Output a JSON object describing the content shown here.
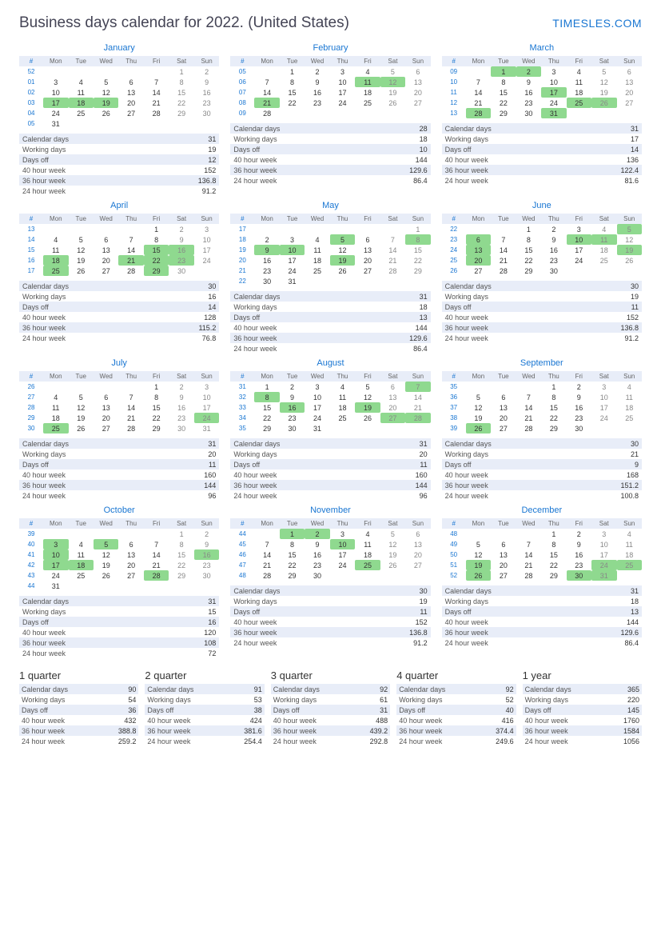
{
  "title": "Business days calendar for 2022. (United States)",
  "brand": "TIMESLES.COM",
  "weekdays": [
    "#",
    "Mon",
    "Tue",
    "Wed",
    "Thu",
    "Fri",
    "Sat",
    "Sun"
  ],
  "stat_labels": [
    "Calendar days",
    "Working days",
    "Days off",
    "40 hour week",
    "36 hour week",
    "24 hour week"
  ],
  "months": [
    {
      "name": "January",
      "weeks": [
        {
          "w": "52",
          "d": [
            "",
            "",
            "",
            "",
            "",
            "1",
            "2"
          ],
          "hl": []
        },
        {
          "w": "01",
          "d": [
            "3",
            "4",
            "5",
            "6",
            "7",
            "8",
            "9"
          ],
          "hl": []
        },
        {
          "w": "02",
          "d": [
            "10",
            "11",
            "12",
            "13",
            "14",
            "15",
            "16"
          ],
          "hl": []
        },
        {
          "w": "03",
          "d": [
            "17",
            "18",
            "19",
            "20",
            "21",
            "22",
            "23"
          ],
          "hl": [
            0,
            1,
            2
          ]
        },
        {
          "w": "04",
          "d": [
            "24",
            "25",
            "26",
            "27",
            "28",
            "29",
            "30"
          ],
          "hl": []
        },
        {
          "w": "05",
          "d": [
            "31",
            "",
            "",
            "",
            "",
            "",
            ""
          ],
          "hl": []
        }
      ],
      "stats": [
        "31",
        "19",
        "12",
        "152",
        "136.8",
        "91.2"
      ]
    },
    {
      "name": "February",
      "weeks": [
        {
          "w": "05",
          "d": [
            "",
            "1",
            "2",
            "3",
            "4",
            "5",
            "6"
          ],
          "hl": []
        },
        {
          "w": "06",
          "d": [
            "7",
            "8",
            "9",
            "10",
            "11",
            "12",
            "13"
          ],
          "hl": [
            4,
            5
          ]
        },
        {
          "w": "07",
          "d": [
            "14",
            "15",
            "16",
            "17",
            "18",
            "19",
            "20"
          ],
          "hl": []
        },
        {
          "w": "08",
          "d": [
            "21",
            "22",
            "23",
            "24",
            "25",
            "26",
            "27"
          ],
          "hl": [
            0
          ]
        },
        {
          "w": "09",
          "d": [
            "28",
            "",
            "",
            "",
            "",
            "",
            ""
          ],
          "hl": []
        }
      ],
      "stats": [
        "28",
        "18",
        "10",
        "144",
        "129.6",
        "86.4"
      ]
    },
    {
      "name": "March",
      "weeks": [
        {
          "w": "09",
          "d": [
            "",
            "1",
            "2",
            "3",
            "4",
            "5",
            "6"
          ],
          "hl": [
            1,
            2
          ]
        },
        {
          "w": "10",
          "d": [
            "7",
            "8",
            "9",
            "10",
            "11",
            "12",
            "13"
          ],
          "hl": []
        },
        {
          "w": "11",
          "d": [
            "14",
            "15",
            "16",
            "17",
            "18",
            "19",
            "20"
          ],
          "hl": [
            3
          ]
        },
        {
          "w": "12",
          "d": [
            "21",
            "22",
            "23",
            "24",
            "25",
            "26",
            "27"
          ],
          "hl": [
            4,
            5
          ]
        },
        {
          "w": "13",
          "d": [
            "28",
            "29",
            "30",
            "31",
            "",
            "",
            ""
          ],
          "hl": [
            0,
            3
          ]
        }
      ],
      "stats": [
        "31",
        "17",
        "14",
        "136",
        "122.4",
        "81.6"
      ]
    },
    {
      "name": "April",
      "weeks": [
        {
          "w": "13",
          "d": [
            "",
            "",
            "",
            "",
            "1",
            "2",
            "3"
          ],
          "hl": []
        },
        {
          "w": "14",
          "d": [
            "4",
            "5",
            "6",
            "7",
            "8",
            "9",
            "10"
          ],
          "hl": []
        },
        {
          "w": "15",
          "d": [
            "11",
            "12",
            "13",
            "14",
            "15",
            "16",
            "17"
          ],
          "hl": [
            4,
            5
          ]
        },
        {
          "w": "16",
          "d": [
            "18",
            "19",
            "20",
            "21",
            "22",
            "23",
            "24"
          ],
          "hl": [
            0,
            3,
            4,
            5
          ]
        },
        {
          "w": "17",
          "d": [
            "25",
            "26",
            "27",
            "28",
            "29",
            "30",
            ""
          ],
          "hl": [
            0,
            4
          ]
        }
      ],
      "stats": [
        "30",
        "16",
        "14",
        "128",
        "115.2",
        "76.8"
      ]
    },
    {
      "name": "May",
      "weeks": [
        {
          "w": "17",
          "d": [
            "",
            "",
            "",
            "",
            "",
            "",
            "1"
          ],
          "hl": []
        },
        {
          "w": "18",
          "d": [
            "2",
            "3",
            "4",
            "5",
            "6",
            "7",
            "8"
          ],
          "hl": [
            3,
            6
          ]
        },
        {
          "w": "19",
          "d": [
            "9",
            "10",
            "11",
            "12",
            "13",
            "14",
            "15"
          ],
          "hl": [
            0,
            1
          ]
        },
        {
          "w": "20",
          "d": [
            "16",
            "17",
            "18",
            "19",
            "20",
            "21",
            "22"
          ],
          "hl": [
            3
          ]
        },
        {
          "w": "21",
          "d": [
            "23",
            "24",
            "25",
            "26",
            "27",
            "28",
            "29"
          ],
          "hl": []
        },
        {
          "w": "22",
          "d": [
            "30",
            "31",
            "",
            "",
            "",
            "",
            ""
          ],
          "hl": []
        }
      ],
      "stats": [
        "31",
        "18",
        "13",
        "144",
        "129.6",
        "86.4"
      ]
    },
    {
      "name": "June",
      "weeks": [
        {
          "w": "22",
          "d": [
            "",
            "",
            "1",
            "2",
            "3",
            "4",
            "5"
          ],
          "hl": [
            6
          ]
        },
        {
          "w": "23",
          "d": [
            "6",
            "7",
            "8",
            "9",
            "10",
            "11",
            "12"
          ],
          "hl": [
            0,
            4,
            5
          ]
        },
        {
          "w": "24",
          "d": [
            "13",
            "14",
            "15",
            "16",
            "17",
            "18",
            "19"
          ],
          "hl": [
            0,
            6
          ]
        },
        {
          "w": "25",
          "d": [
            "20",
            "21",
            "22",
            "23",
            "24",
            "25",
            "26"
          ],
          "hl": [
            0
          ]
        },
        {
          "w": "26",
          "d": [
            "27",
            "28",
            "29",
            "30",
            "",
            "",
            ""
          ],
          "hl": []
        }
      ],
      "stats": [
        "30",
        "19",
        "11",
        "152",
        "136.8",
        "91.2"
      ]
    },
    {
      "name": "July",
      "weeks": [
        {
          "w": "26",
          "d": [
            "",
            "",
            "",
            "",
            "1",
            "2",
            "3"
          ],
          "hl": []
        },
        {
          "w": "27",
          "d": [
            "4",
            "5",
            "6",
            "7",
            "8",
            "9",
            "10"
          ],
          "hl": []
        },
        {
          "w": "28",
          "d": [
            "11",
            "12",
            "13",
            "14",
            "15",
            "16",
            "17"
          ],
          "hl": []
        },
        {
          "w": "29",
          "d": [
            "18",
            "19",
            "20",
            "21",
            "22",
            "23",
            "24"
          ],
          "hl": [
            6
          ]
        },
        {
          "w": "30",
          "d": [
            "25",
            "26",
            "27",
            "28",
            "29",
            "30",
            "31"
          ],
          "hl": [
            0
          ]
        }
      ],
      "stats": [
        "31",
        "20",
        "11",
        "160",
        "144",
        "96"
      ]
    },
    {
      "name": "August",
      "weeks": [
        {
          "w": "31",
          "d": [
            "1",
            "2",
            "3",
            "4",
            "5",
            "6",
            "7"
          ],
          "hl": [
            6
          ]
        },
        {
          "w": "32",
          "d": [
            "8",
            "9",
            "10",
            "11",
            "12",
            "13",
            "14"
          ],
          "hl": [
            0
          ]
        },
        {
          "w": "33",
          "d": [
            "15",
            "16",
            "17",
            "18",
            "19",
            "20",
            "21"
          ],
          "hl": [
            1,
            4
          ]
        },
        {
          "w": "34",
          "d": [
            "22",
            "23",
            "24",
            "25",
            "26",
            "27",
            "28"
          ],
          "hl": [
            5,
            6
          ]
        },
        {
          "w": "35",
          "d": [
            "29",
            "30",
            "31",
            "",
            "",
            "",
            ""
          ],
          "hl": []
        }
      ],
      "stats": [
        "31",
        "20",
        "11",
        "160",
        "144",
        "96"
      ]
    },
    {
      "name": "September",
      "weeks": [
        {
          "w": "35",
          "d": [
            "",
            "",
            "",
            "1",
            "2",
            "3",
            "4"
          ],
          "hl": []
        },
        {
          "w": "36",
          "d": [
            "5",
            "6",
            "7",
            "8",
            "9",
            "10",
            "11"
          ],
          "hl": []
        },
        {
          "w": "37",
          "d": [
            "12",
            "13",
            "14",
            "15",
            "16",
            "17",
            "18"
          ],
          "hl": []
        },
        {
          "w": "38",
          "d": [
            "19",
            "20",
            "21",
            "22",
            "23",
            "24",
            "25"
          ],
          "hl": []
        },
        {
          "w": "39",
          "d": [
            "26",
            "27",
            "28",
            "29",
            "30",
            "",
            ""
          ],
          "hl": [
            0
          ]
        }
      ],
      "stats": [
        "30",
        "21",
        "9",
        "168",
        "151.2",
        "100.8"
      ]
    },
    {
      "name": "October",
      "weeks": [
        {
          "w": "39",
          "d": [
            "",
            "",
            "",
            "",
            "",
            "1",
            "2"
          ],
          "hl": []
        },
        {
          "w": "40",
          "d": [
            "3",
            "4",
            "5",
            "6",
            "7",
            "8",
            "9"
          ],
          "hl": [
            0,
            2
          ]
        },
        {
          "w": "41",
          "d": [
            "10",
            "11",
            "12",
            "13",
            "14",
            "15",
            "16"
          ],
          "hl": [
            0,
            6
          ]
        },
        {
          "w": "42",
          "d": [
            "17",
            "18",
            "19",
            "20",
            "21",
            "22",
            "23"
          ],
          "hl": [
            0,
            1
          ]
        },
        {
          "w": "43",
          "d": [
            "24",
            "25",
            "26",
            "27",
            "28",
            "29",
            "30"
          ],
          "hl": [
            4
          ]
        },
        {
          "w": "44",
          "d": [
            "31",
            "",
            "",
            "",
            "",
            "",
            ""
          ],
          "hl": []
        }
      ],
      "stats": [
        "31",
        "15",
        "16",
        "120",
        "108",
        "72"
      ]
    },
    {
      "name": "November",
      "weeks": [
        {
          "w": "44",
          "d": [
            "",
            "1",
            "2",
            "3",
            "4",
            "5",
            "6"
          ],
          "hl": [
            1,
            2
          ]
        },
        {
          "w": "45",
          "d": [
            "7",
            "8",
            "9",
            "10",
            "11",
            "12",
            "13"
          ],
          "hl": [
            3
          ]
        },
        {
          "w": "46",
          "d": [
            "14",
            "15",
            "16",
            "17",
            "18",
            "19",
            "20"
          ],
          "hl": []
        },
        {
          "w": "47",
          "d": [
            "21",
            "22",
            "23",
            "24",
            "25",
            "26",
            "27"
          ],
          "hl": [
            4
          ]
        },
        {
          "w": "48",
          "d": [
            "28",
            "29",
            "30",
            "",
            "",
            "",
            ""
          ],
          "hl": []
        }
      ],
      "stats": [
        "30",
        "19",
        "11",
        "152",
        "136.8",
        "91.2"
      ]
    },
    {
      "name": "December",
      "weeks": [
        {
          "w": "48",
          "d": [
            "",
            "",
            "",
            "1",
            "2",
            "3",
            "4"
          ],
          "hl": []
        },
        {
          "w": "49",
          "d": [
            "5",
            "6",
            "7",
            "8",
            "9",
            "10",
            "11"
          ],
          "hl": []
        },
        {
          "w": "50",
          "d": [
            "12",
            "13",
            "14",
            "15",
            "16",
            "17",
            "18"
          ],
          "hl": []
        },
        {
          "w": "51",
          "d": [
            "19",
            "20",
            "21",
            "22",
            "23",
            "24",
            "25"
          ],
          "hl": [
            0,
            5,
            6
          ]
        },
        {
          "w": "52",
          "d": [
            "26",
            "27",
            "28",
            "29",
            "30",
            "31",
            ""
          ],
          "hl": [
            0,
            4,
            5
          ]
        }
      ],
      "stats": [
        "31",
        "18",
        "13",
        "144",
        "129.6",
        "86.4"
      ]
    }
  ],
  "summary": [
    {
      "title": "1 quarter",
      "stats": [
        "90",
        "54",
        "36",
        "432",
        "388.8",
        "259.2"
      ]
    },
    {
      "title": "2 quarter",
      "stats": [
        "91",
        "53",
        "38",
        "424",
        "381.6",
        "254.4"
      ]
    },
    {
      "title": "3 quarter",
      "stats": [
        "92",
        "61",
        "31",
        "488",
        "439.2",
        "292.8"
      ]
    },
    {
      "title": "4 quarter",
      "stats": [
        "92",
        "52",
        "40",
        "416",
        "374.4",
        "249.6"
      ]
    },
    {
      "title": "1 year",
      "stats": [
        "365",
        "220",
        "145",
        "1760",
        "1584",
        "1056"
      ]
    }
  ]
}
